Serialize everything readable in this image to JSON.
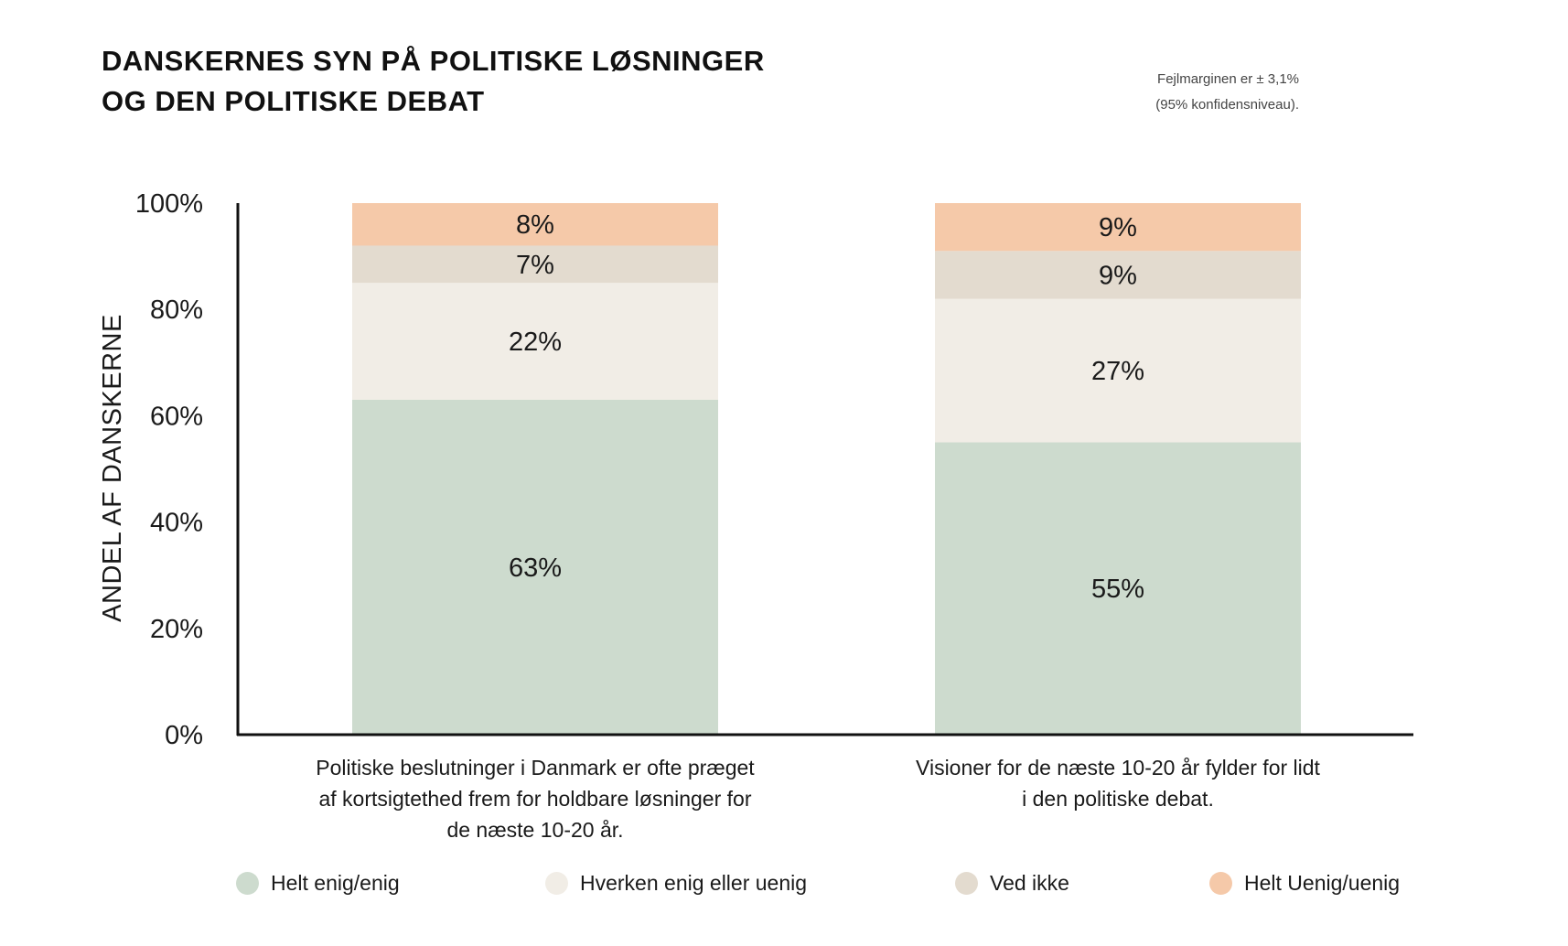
{
  "title": {
    "line1": "DANSKERNES SYN PÅ POLITISKE LØSNINGER",
    "line2": "OG DEN POLITISKE DEBAT"
  },
  "note": {
    "line1": "Fejlmarginen er ± 3,1%",
    "line2": "(95% konfidensniveau)."
  },
  "colors": {
    "Helt enig/enig": "#cddbce",
    "Hverken enig eller uenig": "#f1ede6",
    "Ved ikke": "#e3dbcf",
    "Helt Uenig/uenig": "#f5c9a9"
  },
  "category_labels": [
    [
      "Politiske beslutninger i Danmark er ofte præget",
      "af kortsigtethed frem for holdbare løsninger for",
      "de næste 10-20 år."
    ],
    [
      "Visioner for de næste 10-20 år fylder for lidt",
      "i den politiske debat."
    ]
  ],
  "chart_data": {
    "type": "bar",
    "stacked": true,
    "categories": [
      "Politiske beslutninger i Danmark er ofte præget af kortsigtethed frem for holdbare løsninger for de næste 10-20 år.",
      "Visioner for de næste 10-20 år fylder for lidt i den politiske debat."
    ],
    "series": [
      {
        "name": "Helt enig/enig",
        "values": [
          63,
          55
        ],
        "labels": [
          "63%",
          "55%"
        ]
      },
      {
        "name": "Hverken enig eller uenig",
        "values": [
          22,
          27
        ],
        "labels": [
          "22%",
          "27%"
        ]
      },
      {
        "name": "Ved ikke",
        "values": [
          7,
          9
        ],
        "labels": [
          "7%",
          "9%"
        ]
      },
      {
        "name": "Helt Uenig/uenig",
        "values": [
          8,
          9
        ],
        "labels": [
          "8%",
          "9%"
        ]
      }
    ],
    "ylabel": "ANDEL AF DANSKERNE",
    "xlabel": "",
    "ylim": [
      0,
      100
    ],
    "yticks": [
      0,
      20,
      40,
      60,
      80,
      100
    ],
    "ytick_labels": [
      "0%",
      "20%",
      "40%",
      "60%",
      "80%",
      "100%"
    ],
    "grid": false,
    "legend": "bottom"
  }
}
